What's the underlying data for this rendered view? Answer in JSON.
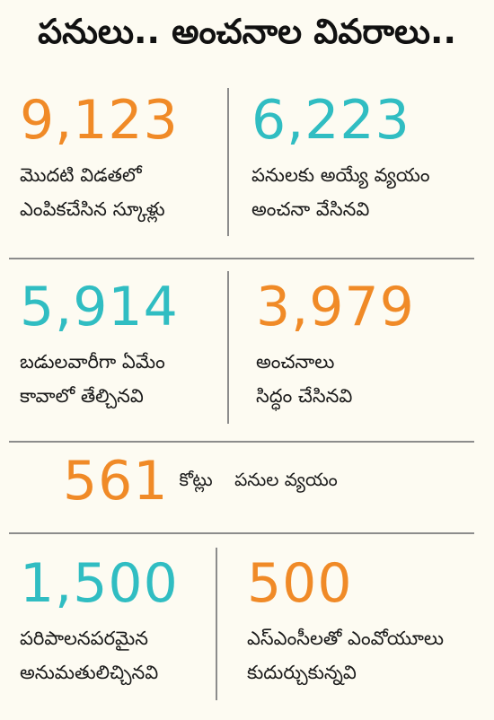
{
  "title": "పనులు.. అంచనాల వివరాలు..",
  "colors": {
    "orange": "#f08a27",
    "teal": "#30bdc2",
    "divider": "#8c8c8c"
  },
  "rows": [
    {
      "left": {
        "value": "9,123",
        "color": "orange",
        "caption": [
          "మొదటి విడతలో",
          "ఎంపికచేసిన స్కూళ్లు"
        ]
      },
      "right": {
        "value": "6,223",
        "color": "teal",
        "caption": [
          "పనులకు అయ్యే వ్యయం",
          "అంచనా వేసినవి"
        ]
      }
    },
    {
      "left": {
        "value": "5,914",
        "color": "teal",
        "caption": [
          "బడులవారీగా ఏమేం",
          "కావాలో తేల్చినవి"
        ]
      },
      "right": {
        "value": "3,979",
        "color": "orange",
        "caption": [
          "అంచనాలు",
          "సిద్ధం చేసినవి"
        ]
      }
    }
  ],
  "center": {
    "value": "561",
    "color": "orange",
    "unit": "కోట్లు",
    "label": "పనుల వ్యయం"
  },
  "bottom": {
    "left": {
      "value": "1,500",
      "color": "teal",
      "caption": [
        "పరిపాలనపరమైన",
        "అనుమతులిచ్చినవి"
      ]
    },
    "right": {
      "value": "500",
      "color": "orange",
      "caption": [
        "ఎస్‌ఎంసీలతో ఎంవోయూలు",
        "కుదుర్చుకున్నవి"
      ]
    }
  }
}
